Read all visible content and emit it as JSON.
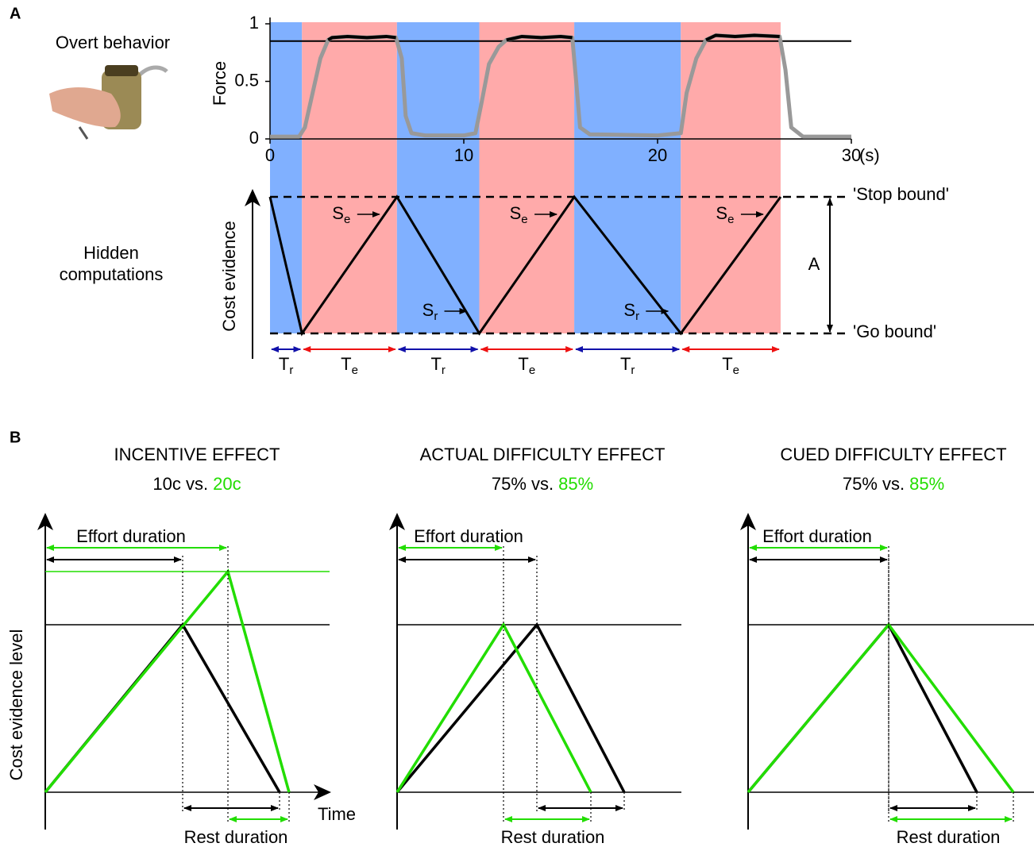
{
  "panel_a": {
    "label": "A",
    "photo_caption": "Overt behavior",
    "hidden_caption": [
      "Hidden",
      "computations"
    ],
    "force_chart": {
      "type": "line",
      "y_label": "Force",
      "x_unit": "(s)",
      "xlim": [
        0,
        30
      ],
      "ylim": [
        0,
        1
      ],
      "xticks": [
        0,
        10,
        20,
        30
      ],
      "yticks": [
        0,
        0.5,
        1
      ],
      "threshold": 0.85,
      "color": "#999999",
      "threshold_color": "#000000",
      "x": [
        0,
        1.5,
        1.8,
        2.2,
        2.6,
        3.0,
        3.2,
        4,
        5,
        6,
        6.5,
        6.8,
        7.0,
        7.3,
        8,
        10,
        10.6,
        10.9,
        11.3,
        11.8,
        12.2,
        13,
        14,
        15,
        15.6,
        15.8,
        16.0,
        16.5,
        20,
        21.2,
        21.5,
        22,
        22.5,
        23,
        24,
        25,
        26.3,
        26.6,
        26.9,
        27.5,
        30
      ],
      "values": [
        0.02,
        0.02,
        0.1,
        0.4,
        0.7,
        0.86,
        0.88,
        0.89,
        0.88,
        0.89,
        0.88,
        0.7,
        0.2,
        0.05,
        0.03,
        0.03,
        0.05,
        0.3,
        0.65,
        0.8,
        0.86,
        0.89,
        0.88,
        0.89,
        0.88,
        0.5,
        0.1,
        0.04,
        0.03,
        0.05,
        0.4,
        0.7,
        0.86,
        0.9,
        0.89,
        0.9,
        0.89,
        0.6,
        0.1,
        0.02,
        0.02
      ],
      "bands": [
        {
          "x0": 0,
          "x1": 1.65,
          "color": "#80b0ff"
        },
        {
          "x0": 1.65,
          "x1": 6.55,
          "color": "#ffaaaa"
        },
        {
          "x0": 6.55,
          "x1": 10.8,
          "color": "#80b0ff"
        },
        {
          "x0": 10.8,
          "x1": 15.7,
          "color": "#ffaaaa"
        },
        {
          "x0": 15.7,
          "x1": 21.2,
          "color": "#80b0ff"
        },
        {
          "x0": 21.2,
          "x1": 26.35,
          "color": "#ffaaaa"
        }
      ]
    },
    "cost_diagram": {
      "y_label": "Cost evidence",
      "stop_bound": "'Stop bound'",
      "go_bound": "'Go bound'",
      "amplitude_label": "A",
      "slope_labels": [
        {
          "main": "S",
          "sub": "e"
        },
        {
          "main": "S",
          "sub": "r"
        },
        {
          "main": "S",
          "sub": "e"
        },
        {
          "main": "S",
          "sub": "r"
        },
        {
          "main": "S",
          "sub": "e"
        }
      ],
      "duration_labels": [
        {
          "main": "T",
          "sub": "r"
        },
        {
          "main": "T",
          "sub": "e"
        },
        {
          "main": "T",
          "sub": "r"
        },
        {
          "main": "T",
          "sub": "e"
        },
        {
          "main": "T",
          "sub": "r"
        },
        {
          "main": "T",
          "sub": "e"
        }
      ]
    }
  },
  "panel_b": {
    "label": "B",
    "y_label": "Cost evidence level",
    "x_label": "Time",
    "plots": [
      {
        "title": "INCENTIVE EFFECT",
        "subtitle": "10c vs.",
        "subtitle_highlight": "20c",
        "effort_label": "Effort duration",
        "rest_label": "Rest duration"
      },
      {
        "title": "ACTUAL DIFFICULTY EFFECT",
        "subtitle": "75% vs.",
        "subtitle_highlight": "85%",
        "effort_label": "Effort duration",
        "rest_label": "Rest duration"
      },
      {
        "title": "CUED DIFFICULTY EFFECT",
        "subtitle": "75% vs.",
        "subtitle_highlight": "85%",
        "effort_label": "Effort duration",
        "rest_label": "Rest duration"
      }
    ]
  }
}
